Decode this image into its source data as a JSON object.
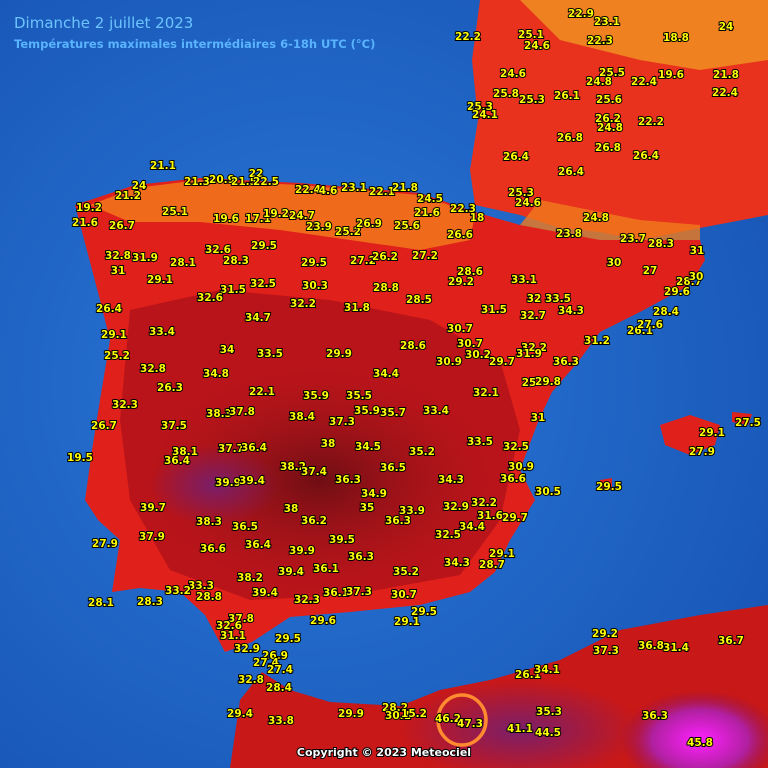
{
  "header": {
    "title": "Dimanche 2 juillet 2023",
    "subtitle": "Températures maximales intermédiaires 6-18h UTC (°C)"
  },
  "labels": [
    21.1,
    21.3,
    20.9,
    21.5,
    22,
    22.5,
    24,
    21.2,
    19.2,
    21.6,
    26.7,
    25.1,
    19.6,
    17.1,
    19.2,
    24.7,
    22.4,
    4.6,
    23.1,
    22.1,
    21.8,
    24.5,
    21.6,
    22.3,
    18,
    23.9,
    25.2,
    26.9,
    25.6,
    26.6,
    32.8,
    31,
    31.9,
    28.1,
    32.6,
    29.5,
    28.3,
    29.5,
    27.2,
    26.2,
    27.2,
    28.6,
    29.2,
    33.1,
    29.1,
    26.4,
    31.5,
    32.5,
    30.3,
    28.8,
    28.5,
    32.6,
    32.2,
    31.8,
    31.5,
    32,
    33.5,
    34.3,
    32.7,
    29.1,
    33.4,
    34.7,
    30.7,
    28.6,
    30.7,
    32.2,
    31.2,
    25.2,
    34,
    33.5,
    29.9,
    30.9,
    30.2,
    29.7,
    31.9,
    36.3,
    32.8,
    34.8,
    34.4,
    25,
    29.8,
    26.3,
    22.1,
    35.9,
    35.5,
    32.1,
    32.3,
    38.3,
    37.8,
    38.4,
    37.3,
    35.9,
    35.7,
    33.4,
    31,
    26.7,
    37.5,
    38.1,
    38,
    34.5,
    35.2,
    33.5,
    32.5,
    19.5,
    36.4,
    37.7,
    36.4,
    38.2,
    37.4,
    36.5,
    30.9,
    36.6,
    39.9,
    39.4,
    36.3,
    34.3,
    34.9,
    30.5,
    29.5,
    39.7,
    38,
    35,
    33.9,
    32.9,
    32.2,
    31.6,
    29.7,
    38.3,
    36.5,
    36.2,
    36.3,
    34.4,
    27.9,
    37.9,
    32.5,
    36.6,
    36.4,
    39.5,
    39.9,
    36.3,
    29.1,
    38.2,
    39.4,
    36.1,
    35.2,
    34.3,
    28.7,
    33.3,
    33.2,
    28.8,
    39.4,
    36.1,
    37.3,
    30.7,
    32.3,
    28.1,
    28.3,
    29.5,
    37.8,
    32.6,
    29.6,
    29.1,
    31.1,
    29.5,
    32.9,
    26.9,
    27.4,
    27.4,
    32.8,
    28.4,
    29.4,
    33.8,
    29.9,
    28.2,
    30.1,
    15.2,
    46.2,
    47.3,
    41.1,
    44.5,
    35.3,
    36.3,
    45.8,
    26.1,
    34.1,
    29.2,
    37.3,
    36.8,
    31.4,
    36.7,
    27.5,
    29.1,
    27.9,
    26.1,
    27.6,
    28.4,
    29.6,
    28.7,
    30,
    31,
    28.3,
    27,
    30,
    21.8,
    22.4,
    18.8,
    24,
    19.6,
    22.4,
    25.5,
    24.8,
    22.3,
    22.9,
    23.1,
    26.1,
    25.6,
    26.2,
    24.8,
    22.2,
    26.8,
    26.8,
    26.4,
    24.6,
    25.3,
    25.8,
    25.3,
    24.1,
    26.4,
    26.4,
    25.3,
    24.6,
    24.8,
    23.8,
    23.7,
    22.2,
    25.1,
    24.6
  ],
  "copyright": "Copyright © 2023 Meteociel"
}
